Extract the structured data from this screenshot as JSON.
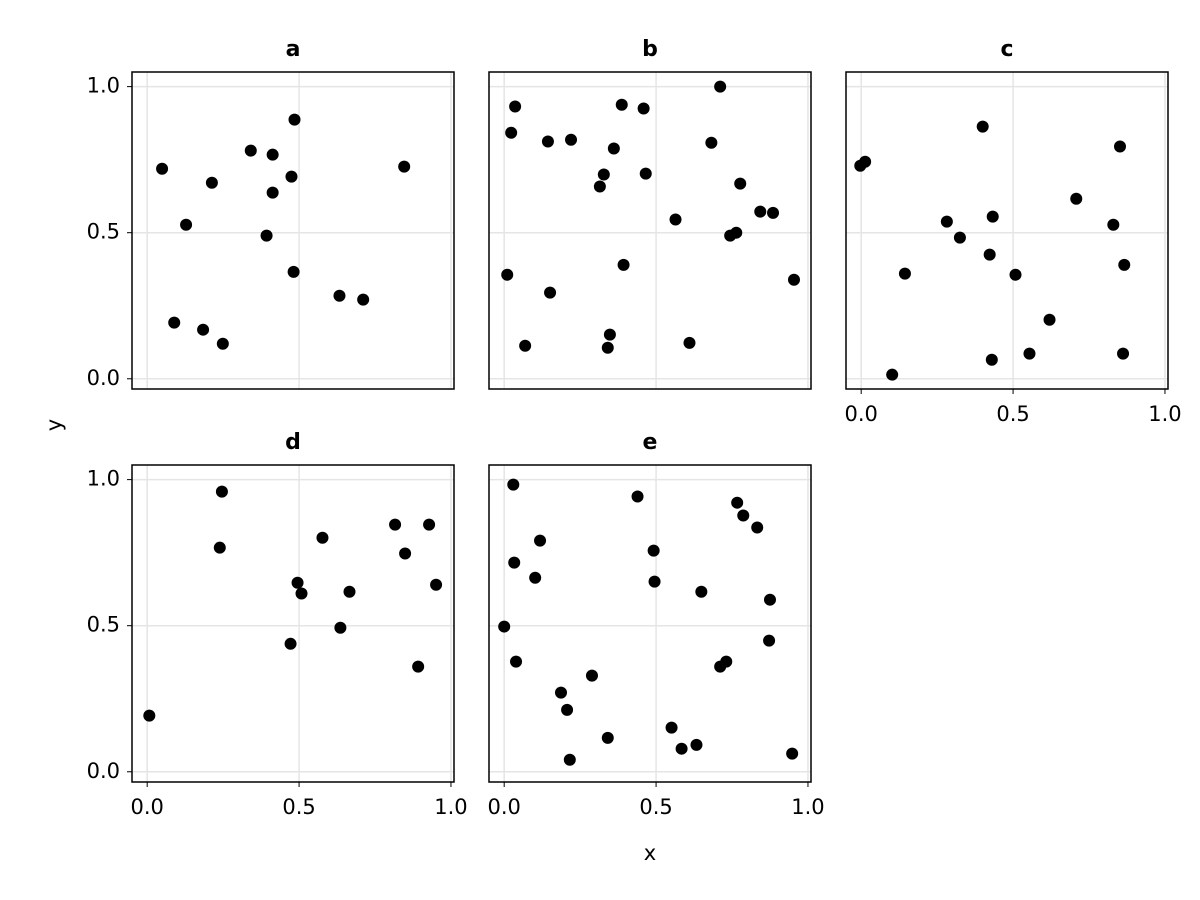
{
  "xlabel": "x",
  "ylabel": "y",
  "chart_data": [
    {
      "type": "scatter",
      "title": "a",
      "color": "#000000",
      "grid": true,
      "xtick_labels": false,
      "ytick_labels": true,
      "xlim": [
        -0.05,
        1.01
      ],
      "ylim": [
        -0.035,
        1.05
      ],
      "xticks": [
        {
          "value": 0,
          "label": "0.0"
        },
        0.5,
        {
          "value": 1,
          "label": "1.0"
        }
      ],
      "yticks": [
        {
          "value": 0,
          "label": "0.0"
        },
        0.5,
        {
          "value": 1,
          "label": "1.0"
        }
      ],
      "x": [
        0.049,
        0.089,
        0.128,
        0.184,
        0.213,
        0.249,
        0.341,
        0.413,
        0.413,
        0.393,
        0.475,
        0.485,
        0.482,
        0.633,
        0.711,
        0.846
      ],
      "y": [
        0.719,
        0.192,
        0.527,
        0.168,
        0.671,
        0.12,
        0.781,
        0.767,
        0.637,
        0.49,
        0.692,
        0.887,
        0.366,
        0.284,
        0.271,
        0.726
      ]
    },
    {
      "type": "scatter",
      "title": "b",
      "color": "#000000",
      "grid": true,
      "xtick_labels": false,
      "ytick_labels": false,
      "xlim": [
        -0.05,
        1.01
      ],
      "ylim": [
        -0.035,
        1.05
      ],
      "xticks": [
        {
          "value": 0,
          "label": "0.0"
        },
        0.5,
        {
          "value": 1,
          "label": "1.0"
        }
      ],
      "yticks": [
        {
          "value": 0,
          "label": "0.0"
        },
        0.5,
        {
          "value": 1,
          "label": "1.0"
        }
      ],
      "x": [
        0.01,
        0.023,
        0.036,
        0.069,
        0.144,
        0.151,
        0.22,
        0.315,
        0.328,
        0.361,
        0.348,
        0.341,
        0.387,
        0.393,
        0.459,
        0.466,
        0.564,
        0.61,
        0.682,
        0.711,
        0.744,
        0.764,
        0.777,
        0.843,
        0.885,
        0.954
      ],
      "y": [
        0.356,
        0.842,
        0.932,
        0.113,
        0.812,
        0.295,
        0.818,
        0.658,
        0.699,
        0.788,
        0.151,
        0.106,
        0.938,
        0.39,
        0.925,
        0.702,
        0.545,
        0.123,
        0.808,
        1.0,
        0.49,
        0.5,
        0.668,
        0.572,
        0.568,
        0.339
      ]
    },
    {
      "type": "scatter",
      "title": "c",
      "color": "#000000",
      "grid": true,
      "xtick_labels": true,
      "ytick_labels": false,
      "xlim": [
        -0.05,
        1.01
      ],
      "ylim": [
        -0.035,
        1.05
      ],
      "xticks": [
        {
          "value": 0,
          "label": "0.0"
        },
        0.5,
        {
          "value": 1,
          "label": "1.0"
        }
      ],
      "yticks": [
        {
          "value": 0,
          "label": "0.0"
        },
        0.5,
        {
          "value": 1,
          "label": "1.0"
        }
      ],
      "x": [
        -0.003,
        0.013,
        0.102,
        0.144,
        0.282,
        0.325,
        0.4,
        0.423,
        0.43,
        0.433,
        0.508,
        0.554,
        0.62,
        0.708,
        0.83,
        0.852,
        0.862,
        0.866
      ],
      "y": [
        0.729,
        0.743,
        0.014,
        0.36,
        0.538,
        0.483,
        0.863,
        0.425,
        0.065,
        0.555,
        0.356,
        0.086,
        0.202,
        0.616,
        0.527,
        0.795,
        0.086,
        0.39
      ]
    },
    {
      "type": "scatter",
      "title": "d",
      "color": "#000000",
      "grid": true,
      "xtick_labels": true,
      "ytick_labels": true,
      "xlim": [
        -0.05,
        1.01
      ],
      "ylim": [
        -0.035,
        1.05
      ],
      "xticks": [
        {
          "value": 0,
          "label": "0.0"
        },
        0.5,
        {
          "value": 1,
          "label": "1.0"
        }
      ],
      "yticks": [
        {
          "value": 0,
          "label": "0.0"
        },
        0.5,
        {
          "value": 1,
          "label": "1.0"
        }
      ],
      "x": [
        0.007,
        0.246,
        0.239,
        0.472,
        0.495,
        0.508,
        0.577,
        0.636,
        0.666,
        0.816,
        0.849,
        0.892,
        0.928,
        0.951
      ],
      "y": [
        0.192,
        0.959,
        0.767,
        0.438,
        0.647,
        0.61,
        0.801,
        0.493,
        0.616,
        0.846,
        0.747,
        0.36,
        0.846,
        0.64
      ]
    },
    {
      "type": "scatter",
      "title": "e",
      "color": "#000000",
      "grid": true,
      "xtick_labels": true,
      "ytick_labels": false,
      "xlim": [
        -0.05,
        1.01
      ],
      "ylim": [
        -0.035,
        1.05
      ],
      "xticks": [
        {
          "value": 0,
          "label": "0.0"
        },
        0.5,
        {
          "value": 1,
          "label": "1.0"
        }
      ],
      "yticks": [
        {
          "value": 0,
          "label": "0.0"
        },
        0.5,
        {
          "value": 1,
          "label": "1.0"
        }
      ],
      "x": [
        0.0,
        0.03,
        0.033,
        0.039,
        0.102,
        0.118,
        0.187,
        0.207,
        0.216,
        0.289,
        0.341,
        0.439,
        0.492,
        0.495,
        0.551,
        0.584,
        0.633,
        0.649,
        0.711,
        0.731,
        0.767,
        0.787,
        0.833,
        0.872,
        0.875,
        0.948
      ],
      "y": [
        0.497,
        0.983,
        0.716,
        0.377,
        0.664,
        0.791,
        0.271,
        0.212,
        0.041,
        0.329,
        0.116,
        0.942,
        0.757,
        0.651,
        0.151,
        0.079,
        0.092,
        0.616,
        0.36,
        0.377,
        0.921,
        0.877,
        0.836,
        0.449,
        0.589,
        0.062
      ]
    }
  ]
}
